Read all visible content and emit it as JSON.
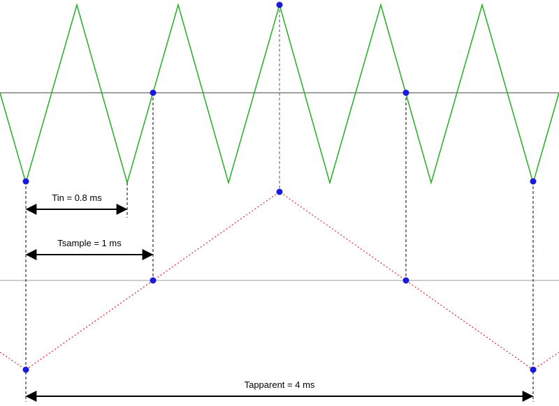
{
  "labels": {
    "tin": "Tin = 0.8 ms",
    "tsample": "Tsample = 1 ms",
    "tapparent": "Tapparent = 4 ms"
  }
}
